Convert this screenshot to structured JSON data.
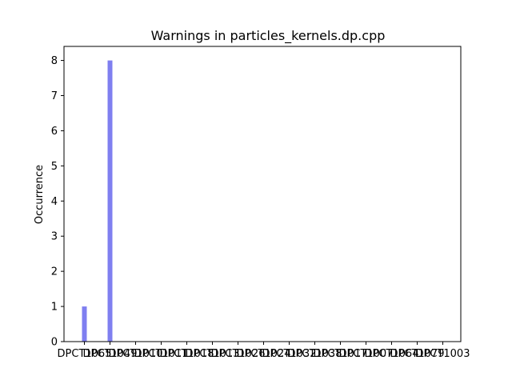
{
  "chart_data": {
    "type": "bar",
    "title": "Warnings in particles_kernels.dp.cpp",
    "xlabel": "",
    "ylabel": "Occurrence",
    "categories": [
      "DPCT1065",
      "DPCT1049",
      "DPCT1010",
      "DPCT1011",
      "DPCT1018",
      "DPCT1013",
      "DPCT1026",
      "DPCT1024",
      "DPCT1032",
      "DPCT1038",
      "DPCT1017",
      "DPCT1007",
      "DPCT1064",
      "DPCT1079",
      "DPCT1003"
    ],
    "values": [
      1,
      8,
      0,
      0,
      0,
      0,
      0,
      0,
      0,
      0,
      0,
      0,
      0,
      0,
      0
    ],
    "ylim": [
      0,
      8.4
    ],
    "yticks": [
      0,
      1,
      2,
      3,
      4,
      5,
      6,
      7,
      8
    ],
    "grid": false,
    "bar_color": "#7f7ff0"
  }
}
